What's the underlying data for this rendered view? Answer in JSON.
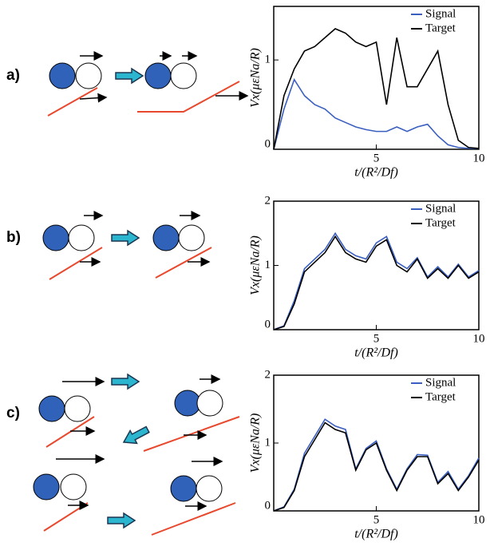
{
  "panel_labels": [
    "a)",
    "b)",
    "c)"
  ],
  "chart_data": [
    {
      "type": "line",
      "x_label": "t/(R²/Df)",
      "y_label": "Vx(μεNa/R)",
      "x": [
        0,
        0.5,
        1,
        1.5,
        2,
        2.5,
        3,
        3.5,
        4,
        4.5,
        5,
        5.5,
        6,
        6.5,
        7,
        7.5,
        8,
        8.5,
        9,
        9.5,
        10
      ],
      "xlim": [
        0,
        10
      ],
      "xticks": [
        5,
        10
      ],
      "ylim": [
        0,
        1.6
      ],
      "yticks": [
        0,
        1
      ],
      "legend": "top-right",
      "series": [
        {
          "name": "Signal",
          "color": "#3a5fc0",
          "values": [
            0,
            0.45,
            0.78,
            0.6,
            0.5,
            0.45,
            0.35,
            0.3,
            0.25,
            0.22,
            0.2,
            0.2,
            0.25,
            0.2,
            0.25,
            0.28,
            0.15,
            0.05,
            0.02,
            0.01,
            0.01
          ]
        },
        {
          "name": "Target",
          "color": "#000000",
          "values": [
            0,
            0.6,
            0.9,
            1.1,
            1.15,
            1.25,
            1.35,
            1.3,
            1.2,
            1.15,
            1.2,
            0.5,
            1.25,
            0.7,
            0.7,
            0.9,
            1.1,
            0.5,
            0.1,
            0.02,
            0.01
          ]
        }
      ]
    },
    {
      "type": "line",
      "x_label": "t/(R²/Df)",
      "y_label": "Vx(μεNa/R)",
      "x": [
        0,
        0.5,
        1,
        1.5,
        2,
        2.5,
        3,
        3.5,
        4,
        4.5,
        5,
        5.5,
        6,
        6.5,
        7,
        7.5,
        8,
        8.5,
        9,
        9.5,
        10
      ],
      "xlim": [
        0,
        10
      ],
      "xticks": [
        5,
        10
      ],
      "ylim": [
        0,
        2
      ],
      "yticks": [
        0,
        1,
        2
      ],
      "legend": "top-right",
      "series": [
        {
          "name": "Signal",
          "color": "#3a5fc0",
          "values": [
            0,
            0.06,
            0.45,
            0.95,
            1.1,
            1.25,
            1.5,
            1.25,
            1.15,
            1.1,
            1.35,
            1.45,
            1.05,
            0.95,
            1.12,
            0.82,
            0.98,
            0.82,
            1.02,
            0.82,
            0.92
          ]
        },
        {
          "name": "Target",
          "color": "#000000",
          "values": [
            0,
            0.05,
            0.4,
            0.9,
            1.05,
            1.2,
            1.45,
            1.2,
            1.1,
            1.05,
            1.3,
            1.4,
            1.0,
            0.9,
            1.1,
            0.8,
            0.95,
            0.8,
            1.0,
            0.8,
            0.9
          ]
        }
      ]
    },
    {
      "type": "line",
      "x_label": "t/(R²/Df)",
      "y_label": "Vx(μεNa/R)",
      "x": [
        0,
        0.5,
        1,
        1.5,
        2,
        2.5,
        3,
        3.5,
        4,
        4.5,
        5,
        5.5,
        6,
        6.5,
        7,
        7.5,
        8,
        8.5,
        9,
        9.5,
        10
      ],
      "xlim": [
        0,
        10
      ],
      "xticks": [
        5,
        10
      ],
      "ylim": [
        0,
        2
      ],
      "yticks": [
        0,
        1,
        2
      ],
      "legend": "top-right",
      "series": [
        {
          "name": "Signal",
          "color": "#3a5fc0",
          "values": [
            0,
            0.06,
            0.32,
            0.85,
            1.1,
            1.35,
            1.25,
            1.2,
            0.62,
            0.92,
            1.03,
            0.62,
            0.32,
            0.62,
            0.83,
            0.82,
            0.42,
            0.58,
            0.32,
            0.52,
            0.78
          ]
        },
        {
          "name": "Target",
          "color": "#000000",
          "values": [
            0,
            0.05,
            0.3,
            0.8,
            1.05,
            1.3,
            1.2,
            1.15,
            0.6,
            0.9,
            1.0,
            0.6,
            0.3,
            0.6,
            0.8,
            0.8,
            0.4,
            0.55,
            0.3,
            0.5,
            0.75
          ]
        }
      ]
    }
  ]
}
